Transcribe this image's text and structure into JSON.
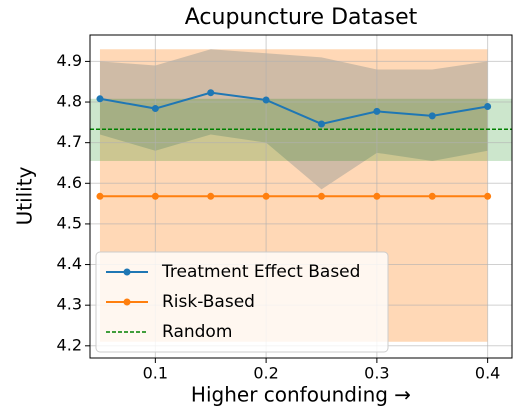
{
  "chart_data": {
    "type": "line",
    "title": "Acupuncture Dataset",
    "xlabel": "Higher confounding →",
    "ylabel": "Utility",
    "x": [
      0.05,
      0.1,
      0.15,
      0.2,
      0.25,
      0.3,
      0.35,
      0.4
    ],
    "series": [
      {
        "name": "Treatment Effect Based",
        "color": "#1f77b4",
        "marker": true,
        "values": [
          4.808,
          4.784,
          4.823,
          4.805,
          4.746,
          4.777,
          4.766,
          4.789
        ],
        "upper": [
          4.9,
          4.89,
          4.93,
          4.92,
          4.91,
          4.88,
          4.88,
          4.9
        ],
        "lower": [
          4.72,
          4.68,
          4.72,
          4.7,
          4.585,
          4.675,
          4.655,
          4.68
        ]
      },
      {
        "name": "Risk-Based",
        "color": "#ff7f0e",
        "marker": true,
        "values": [
          4.568,
          4.568,
          4.568,
          4.568,
          4.568,
          4.568,
          4.568,
          4.568
        ],
        "upper": [
          4.93,
          4.93,
          4.93,
          4.93,
          4.93,
          4.93,
          4.93,
          4.93
        ],
        "lower": [
          4.21,
          4.21,
          4.21,
          4.21,
          4.21,
          4.21,
          4.21,
          4.21
        ]
      },
      {
        "name": "Random",
        "color": "#008000",
        "dashed": true,
        "horizontal": true,
        "value": 4.733,
        "upper": 4.808,
        "lower": 4.655
      }
    ],
    "xlim": [
      0.041,
      0.422
    ],
    "ylim": [
      4.17,
      4.965
    ],
    "xticks": [
      0.1,
      0.2,
      0.3,
      0.4
    ],
    "yticks": [
      4.2,
      4.3,
      4.4,
      4.5,
      4.6,
      4.7,
      4.8,
      4.9
    ],
    "grid": true,
    "legend": "lower left"
  }
}
